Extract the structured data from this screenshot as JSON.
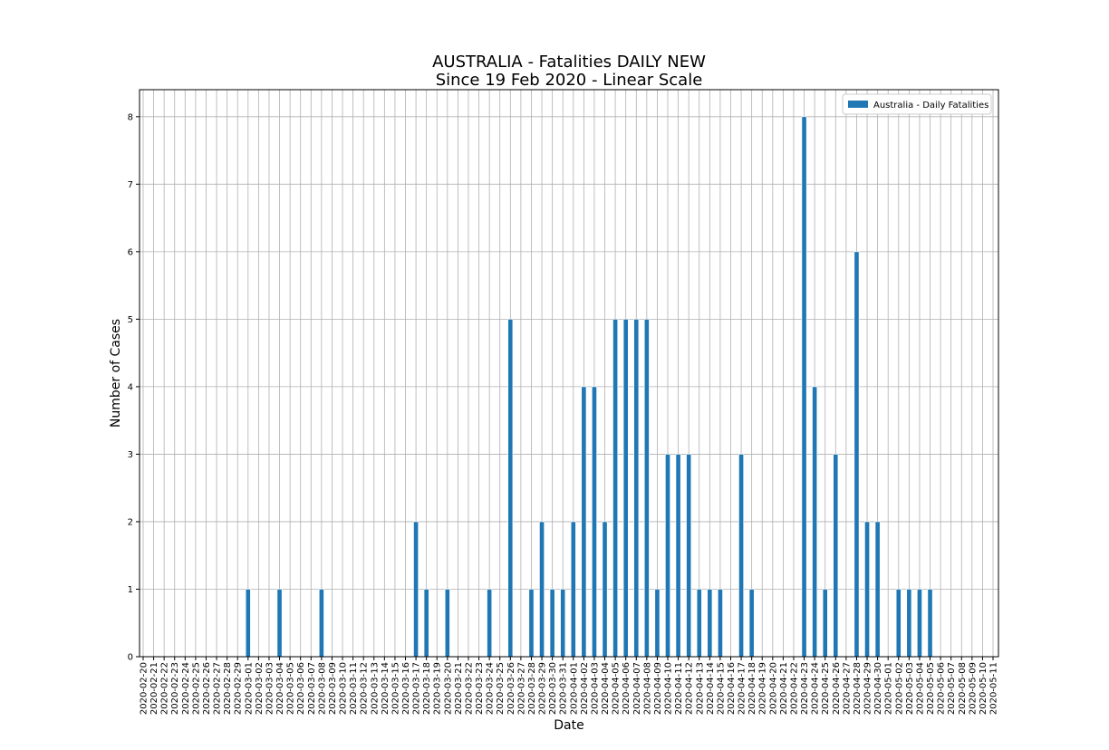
{
  "chart_data": {
    "type": "bar",
    "title": "AUSTRALIA - Fatalities DAILY NEW",
    "subtitle": "Since 19 Feb 2020 - Linear Scale",
    "x_label": "Date",
    "y_label": "Number of Cases",
    "categories": [
      "2020-02-20",
      "2020-02-21",
      "2020-02-22",
      "2020-02-23",
      "2020-02-24",
      "2020-02-25",
      "2020-02-26",
      "2020-02-27",
      "2020-02-28",
      "2020-02-29",
      "2020-03-01",
      "2020-03-02",
      "2020-03-03",
      "2020-03-04",
      "2020-03-05",
      "2020-03-06",
      "2020-03-07",
      "2020-03-08",
      "2020-03-09",
      "2020-03-10",
      "2020-03-11",
      "2020-03-12",
      "2020-03-13",
      "2020-03-14",
      "2020-03-15",
      "2020-03-16",
      "2020-03-17",
      "2020-03-18",
      "2020-03-19",
      "2020-03-20",
      "2020-03-21",
      "2020-03-22",
      "2020-03-23",
      "2020-03-24",
      "2020-03-25",
      "2020-03-26",
      "2020-03-27",
      "2020-03-28",
      "2020-03-29",
      "2020-03-30",
      "2020-03-31",
      "2020-04-01",
      "2020-04-02",
      "2020-04-03",
      "2020-04-04",
      "2020-04-05",
      "2020-04-06",
      "2020-04-07",
      "2020-04-08",
      "2020-04-09",
      "2020-04-10",
      "2020-04-11",
      "2020-04-12",
      "2020-04-13",
      "2020-04-14",
      "2020-04-15",
      "2020-04-16",
      "2020-04-17",
      "2020-04-18",
      "2020-04-19",
      "2020-04-20",
      "2020-04-21",
      "2020-04-22",
      "2020-04-23",
      "2020-04-24",
      "2020-04-25",
      "2020-04-26",
      "2020-04-27",
      "2020-04-28",
      "2020-04-29",
      "2020-04-30",
      "2020-05-01",
      "2020-05-02",
      "2020-05-03",
      "2020-05-04",
      "2020-05-05",
      "2020-05-06",
      "2020-05-07",
      "2020-05-08",
      "2020-05-09",
      "2020-05-10",
      "2020-05-11"
    ],
    "series": [
      {
        "name": "Australia - Daily Fatalities",
        "color": "#1f77b4",
        "values": [
          0,
          0,
          0,
          0,
          0,
          0,
          0,
          0,
          0,
          0,
          1,
          0,
          0,
          1,
          0,
          0,
          0,
          1,
          0,
          0,
          0,
          0,
          0,
          0,
          0,
          0,
          2,
          1,
          0,
          1,
          0,
          0,
          0,
          1,
          0,
          5,
          0,
          1,
          2,
          1,
          1,
          2,
          4,
          4,
          2,
          5,
          5,
          5,
          5,
          1,
          3,
          3,
          3,
          1,
          1,
          1,
          0,
          3,
          1,
          0,
          0,
          0,
          0,
          8,
          4,
          1,
          3,
          0,
          6,
          2,
          2,
          0,
          1,
          1,
          1,
          1,
          0,
          0,
          0,
          0,
          0,
          0
        ]
      }
    ],
    "ylim": [
      0,
      8.4
    ],
    "yticks": [
      0,
      1,
      2,
      3,
      4,
      5,
      6,
      7,
      8
    ],
    "grid": true,
    "legend": "upper right"
  }
}
